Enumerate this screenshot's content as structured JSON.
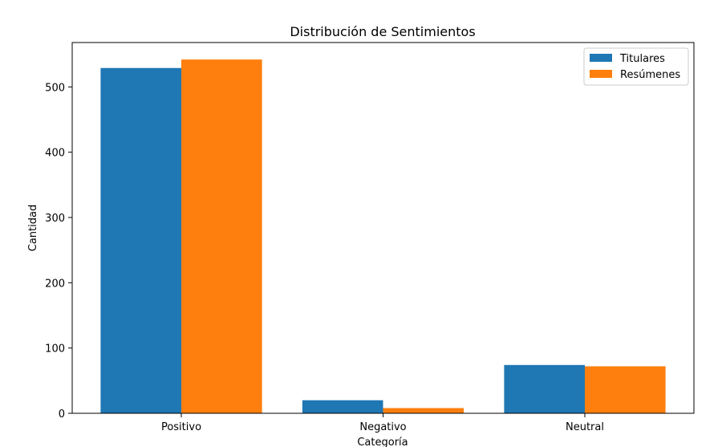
{
  "colors": {
    "series_0": "#1f77b4",
    "series_1": "#ff7f0e",
    "axis": "#000000",
    "background": "#ffffff"
  },
  "chart_data": {
    "type": "bar",
    "title": "Distribución de Sentimientos",
    "xlabel": "Categoría",
    "ylabel": "Cantidad",
    "categories": [
      "Positivo",
      "Negativo",
      "Neutral"
    ],
    "series": [
      {
        "name": "Titulares",
        "values": [
          529,
          20,
          74
        ]
      },
      {
        "name": "Resúmenes",
        "values": [
          542,
          8,
          72
        ]
      }
    ],
    "ylim": [
      0,
      568
    ],
    "yticks": [
      0,
      100,
      200,
      300,
      400,
      500
    ],
    "ytick_labels": [
      "0",
      "100",
      "200",
      "300",
      "400",
      "500"
    ],
    "grid": false,
    "legend_position": "top-right"
  }
}
